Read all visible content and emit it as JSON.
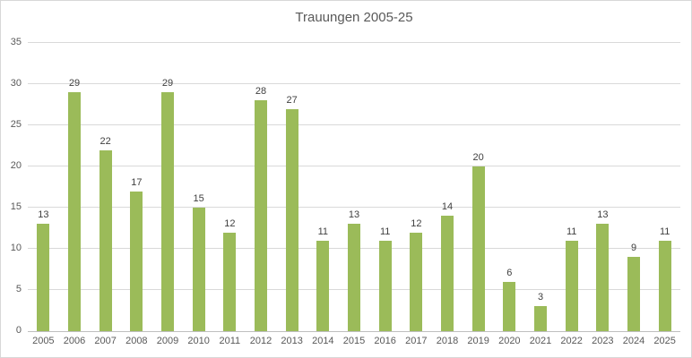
{
  "chart": {
    "title": "Trauungen 2005-25",
    "colors": {
      "bar": "#9bbb59",
      "title_text": "#595959",
      "axis_text": "#595959",
      "data_label_text": "#404040",
      "gridline": "#d9d9d9",
      "axis_line": "#bfbfbf",
      "frame_border": "#d7d7d7",
      "background": "#ffffff"
    }
  },
  "chart_data": {
    "type": "bar",
    "title": "Trauungen 2005-25",
    "categories": [
      "2005",
      "2006",
      "2007",
      "2008",
      "2009",
      "2010",
      "2011",
      "2012",
      "2013",
      "2014",
      "2015",
      "2016",
      "2017",
      "2018",
      "2019",
      "2020",
      "2021",
      "2022",
      "2023",
      "2024",
      "2025"
    ],
    "values": [
      13,
      29,
      22,
      17,
      29,
      15,
      12,
      28,
      27,
      11,
      13,
      11,
      12,
      14,
      20,
      6,
      3,
      11,
      13,
      9,
      11
    ],
    "xlabel": "",
    "ylabel": "",
    "ylim": [
      0,
      35
    ],
    "yticks": [
      0,
      5,
      10,
      15,
      20,
      25,
      30,
      35
    ],
    "grid": true,
    "legend": false,
    "data_labels": true
  }
}
